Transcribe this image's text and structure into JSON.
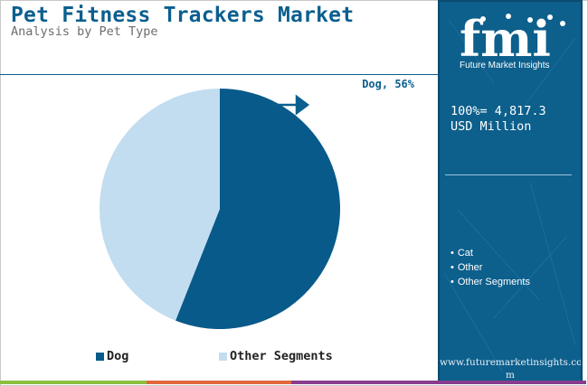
{
  "header": {
    "title": "Pet Fitness Trackers Market",
    "subtitle": "Analysis by Pet Type"
  },
  "chart_data": {
    "type": "pie",
    "slices": [
      {
        "name": "Dog",
        "value": 56,
        "color": "#085a8a"
      },
      {
        "name": "Other Segments",
        "value": 44,
        "color": "#c2ddef"
      }
    ],
    "annotation": "Dog, 56%",
    "legend": [
      "Dog",
      "Other Segments"
    ],
    "legend_position": "bottom"
  },
  "panel": {
    "logo_letters": "fmi",
    "logo_caption": "Future Market Insights",
    "total_line1": "100%= 4,817.3",
    "total_line2": "USD Million",
    "segments": [
      "Cat",
      "Other",
      "Other Segments"
    ],
    "website_line1": "www.futuremarketinsights.co",
    "website_line2": "m"
  },
  "colors": {
    "brand_blue": "#0d5f8c",
    "title_blue": "#0b5f8f",
    "bottom_bar": [
      "#8cbf3f",
      "#e2673d",
      "#8a3c8f"
    ]
  }
}
